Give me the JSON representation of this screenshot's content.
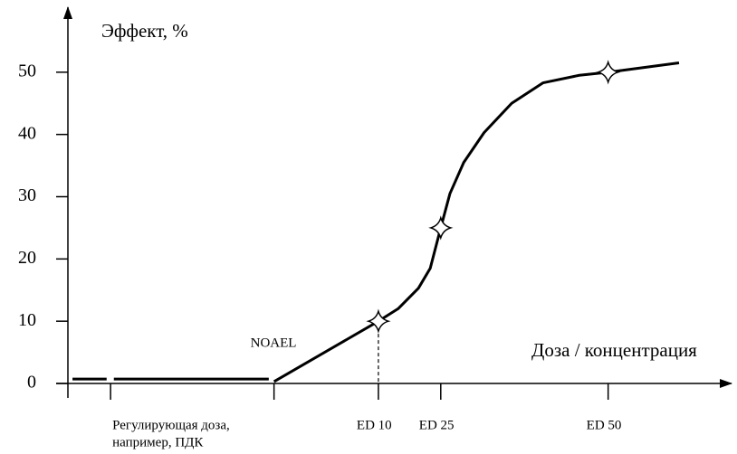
{
  "chart_data": {
    "type": "line",
    "ylabel": "Эффект, %",
    "xlabel": "Доза / концентрация",
    "xlim": [
      0,
      100
    ],
    "ylim": [
      0,
      60
    ],
    "yticks": [
      0,
      10,
      20,
      30,
      40,
      50
    ],
    "xticks": [
      {
        "value": 6.5,
        "label": [
          "Регулирующая доза,",
          "например, ПДК"
        ]
      },
      {
        "value": 31.4,
        "label": [
          "NOAEL"
        ]
      },
      {
        "value": 47.3,
        "label": [
          "ED 10"
        ]
      },
      {
        "value": 56.8,
        "label": [
          "ED 25"
        ]
      },
      {
        "value": 82.3,
        "label": [
          "ED 50"
        ]
      }
    ],
    "series": [
      {
        "color": "#000000",
        "x": [
          0.7,
          5.9,
          null,
          7.0,
          30.6,
          null,
          31.4,
          47.3,
          50.3,
          53.4,
          55.2,
          56.8,
          58.2,
          60.3,
          63.4,
          67.6,
          72.4,
          77.9,
          82.3,
          93.1
        ],
        "values": [
          0.7,
          0.7,
          null,
          0.7,
          0.7,
          null,
          0.3,
          10,
          12,
          15.3,
          18.5,
          25,
          30.5,
          35.5,
          40.3,
          45,
          48.3,
          49.5,
          50,
          51.5
        ]
      }
    ],
    "markers": {
      "x": [
        47.3,
        56.8,
        82.3
      ],
      "values": [
        10,
        25,
        50
      ]
    }
  }
}
